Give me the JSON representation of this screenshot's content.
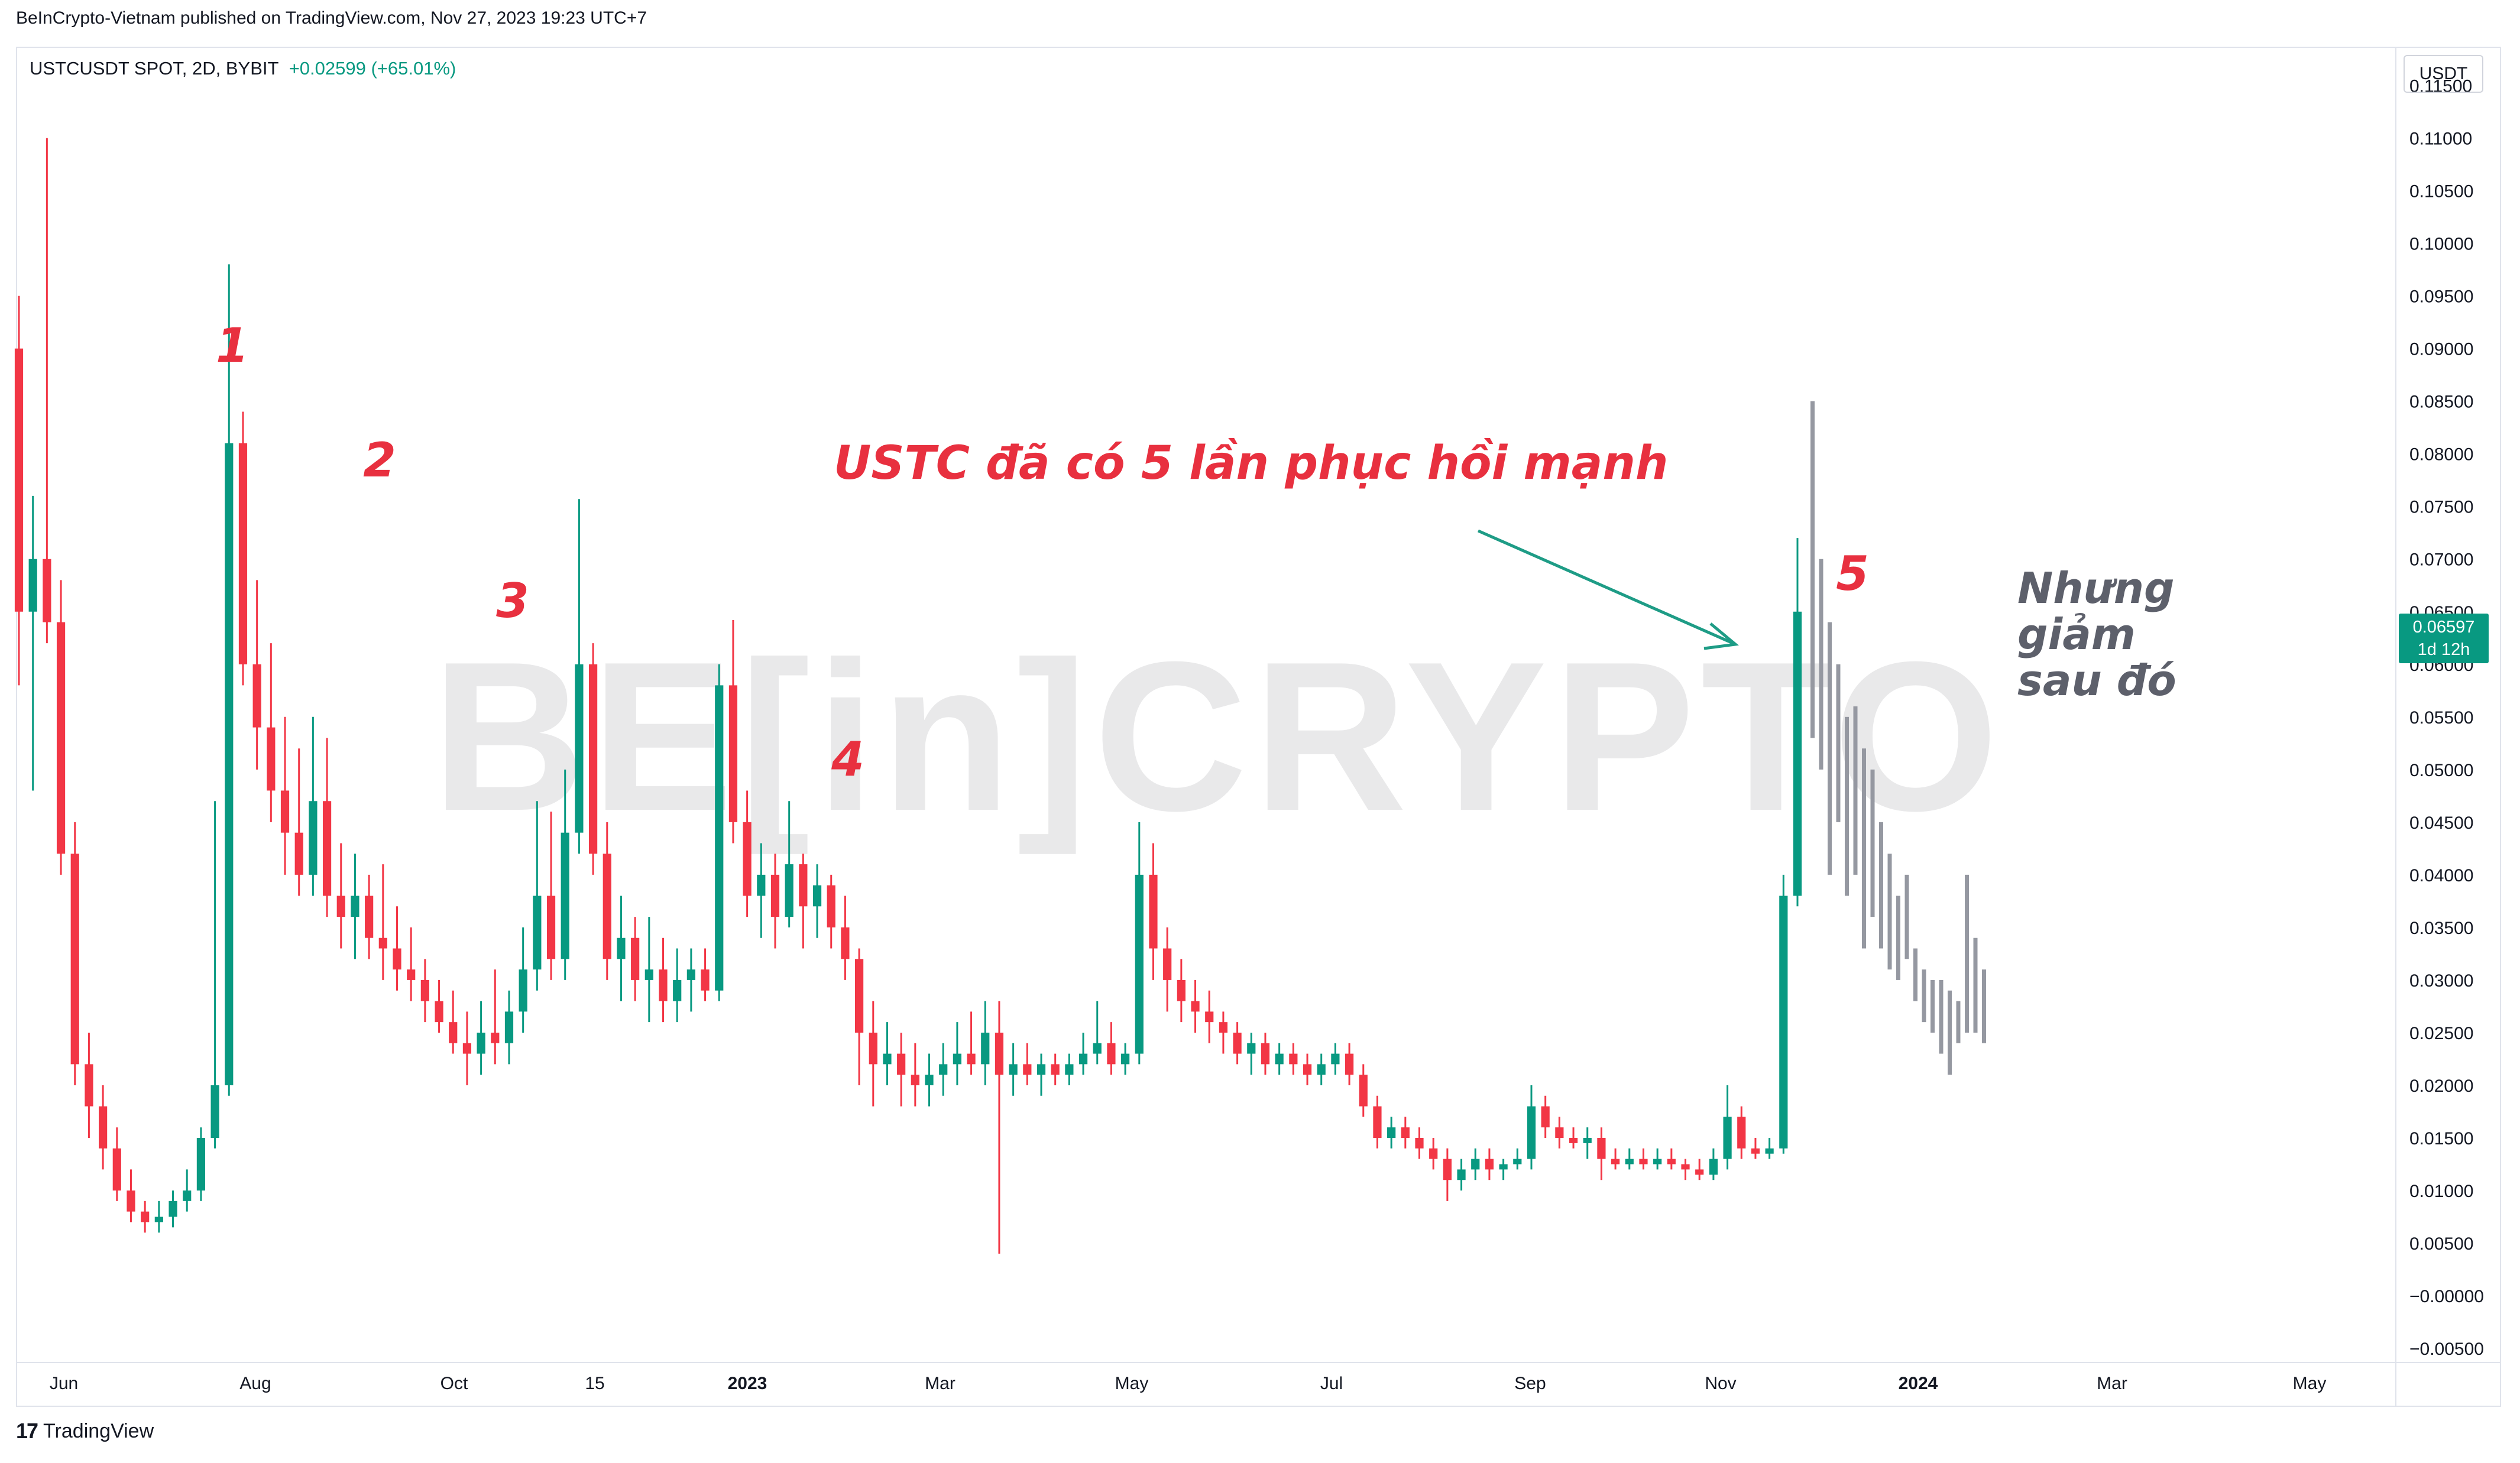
{
  "header": {
    "published": "BeInCrypto-Vietnam published on TradingView.com, Nov 27, 2023 19:23 UTC+7",
    "symbol": "USTCUSDT SPOT, 2D, BYBIT",
    "change": "+0.02599 (+65.01%)",
    "unit": "USDT"
  },
  "price_badge": {
    "price": "0.06597",
    "countdown": "1d 12h"
  },
  "footer": {
    "brand": "TradingView"
  },
  "watermark": "BE[in]CRYPTO",
  "colors": {
    "up": "#089981",
    "down": "#f23645",
    "projection": "#9598a1",
    "annotation": "#e8303f",
    "arrow": "#1e9c86"
  },
  "chart_data": {
    "type": "candlestick",
    "ylim": [
      -0.0055,
      0.1175
    ],
    "y_ticks": [
      "0.11500",
      "0.11000",
      "0.10500",
      "0.10000",
      "0.09500",
      "0.09000",
      "0.08500",
      "0.08000",
      "0.07500",
      "0.07000",
      "0.06500",
      "0.06000",
      "0.05500",
      "0.05000",
      "0.04500",
      "0.04000",
      "0.03500",
      "0.03000",
      "0.02500",
      "0.02000",
      "0.01500",
      "0.01000",
      "0.00500",
      "−0.00000",
      "−0.00500"
    ],
    "x_ticks": [
      "Jun",
      "Aug",
      "Oct",
      "15",
      "2023",
      "Mar",
      "May",
      "Jul",
      "Sep",
      "Nov",
      "2024",
      "Mar",
      "May"
    ],
    "annotations": {
      "wave_labels": [
        "1",
        "2",
        "3",
        "4",
        "5"
      ],
      "main_text": "USTC đã có 5 lần phục hồi mạnh",
      "side_text": [
        "Nhưng",
        "giảm",
        "sau đó"
      ]
    },
    "key_points": [
      {
        "label": "1",
        "high": 0.098
      },
      {
        "label": "2",
        "high": 0.0757
      },
      {
        "label": "3",
        "high": 0.0642
      },
      {
        "label": "4",
        "high": 0.0452
      },
      {
        "label": "5",
        "high": 0.085
      }
    ],
    "candles": [
      [
        0.09,
        0.095,
        0.058,
        0.065
      ],
      [
        0.065,
        0.076,
        0.048,
        0.07
      ],
      [
        0.07,
        0.11,
        0.062,
        0.064
      ],
      [
        0.064,
        0.068,
        0.04,
        0.042
      ],
      [
        0.042,
        0.045,
        0.02,
        0.022
      ],
      [
        0.022,
        0.025,
        0.015,
        0.018
      ],
      [
        0.018,
        0.02,
        0.012,
        0.014
      ],
      [
        0.014,
        0.016,
        0.009,
        0.01
      ],
      [
        0.01,
        0.012,
        0.007,
        0.008
      ],
      [
        0.008,
        0.009,
        0.006,
        0.007
      ],
      [
        0.007,
        0.009,
        0.006,
        0.0075
      ],
      [
        0.0075,
        0.01,
        0.0065,
        0.009
      ],
      [
        0.009,
        0.012,
        0.008,
        0.01
      ],
      [
        0.01,
        0.016,
        0.009,
        0.015
      ],
      [
        0.015,
        0.047,
        0.014,
        0.02
      ],
      [
        0.02,
        0.098,
        0.019,
        0.081
      ],
      [
        0.081,
        0.084,
        0.058,
        0.06
      ],
      [
        0.06,
        0.068,
        0.05,
        0.054
      ],
      [
        0.054,
        0.062,
        0.045,
        0.048
      ],
      [
        0.048,
        0.055,
        0.04,
        0.044
      ],
      [
        0.044,
        0.052,
        0.038,
        0.04
      ],
      [
        0.04,
        0.055,
        0.038,
        0.047
      ],
      [
        0.047,
        0.053,
        0.036,
        0.038
      ],
      [
        0.038,
        0.043,
        0.033,
        0.036
      ],
      [
        0.036,
        0.042,
        0.032,
        0.038
      ],
      [
        0.038,
        0.04,
        0.032,
        0.034
      ],
      [
        0.034,
        0.041,
        0.03,
        0.033
      ],
      [
        0.033,
        0.037,
        0.029,
        0.031
      ],
      [
        0.031,
        0.035,
        0.028,
        0.03
      ],
      [
        0.03,
        0.032,
        0.026,
        0.028
      ],
      [
        0.028,
        0.03,
        0.025,
        0.026
      ],
      [
        0.026,
        0.029,
        0.023,
        0.024
      ],
      [
        0.024,
        0.027,
        0.02,
        0.023
      ],
      [
        0.023,
        0.028,
        0.021,
        0.025
      ],
      [
        0.025,
        0.031,
        0.022,
        0.024
      ],
      [
        0.024,
        0.029,
        0.022,
        0.027
      ],
      [
        0.027,
        0.035,
        0.025,
        0.031
      ],
      [
        0.031,
        0.047,
        0.029,
        0.038
      ],
      [
        0.038,
        0.046,
        0.03,
        0.032
      ],
      [
        0.032,
        0.05,
        0.03,
        0.044
      ],
      [
        0.044,
        0.0757,
        0.042,
        0.06
      ],
      [
        0.06,
        0.062,
        0.04,
        0.042
      ],
      [
        0.042,
        0.045,
        0.03,
        0.032
      ],
      [
        0.032,
        0.038,
        0.028,
        0.034
      ],
      [
        0.034,
        0.036,
        0.028,
        0.03
      ],
      [
        0.03,
        0.036,
        0.026,
        0.031
      ],
      [
        0.031,
        0.034,
        0.026,
        0.028
      ],
      [
        0.028,
        0.033,
        0.026,
        0.03
      ],
      [
        0.03,
        0.033,
        0.027,
        0.031
      ],
      [
        0.031,
        0.033,
        0.028,
        0.029
      ],
      [
        0.029,
        0.06,
        0.028,
        0.058
      ],
      [
        0.058,
        0.0642,
        0.043,
        0.045
      ],
      [
        0.045,
        0.048,
        0.036,
        0.038
      ],
      [
        0.038,
        0.043,
        0.034,
        0.04
      ],
      [
        0.04,
        0.042,
        0.033,
        0.036
      ],
      [
        0.036,
        0.047,
        0.035,
        0.041
      ],
      [
        0.041,
        0.042,
        0.033,
        0.037
      ],
      [
        0.037,
        0.041,
        0.034,
        0.039
      ],
      [
        0.039,
        0.04,
        0.033,
        0.035
      ],
      [
        0.035,
        0.038,
        0.03,
        0.032
      ],
      [
        0.032,
        0.033,
        0.02,
        0.025
      ],
      [
        0.025,
        0.028,
        0.018,
        0.022
      ],
      [
        0.022,
        0.026,
        0.02,
        0.023
      ],
      [
        0.023,
        0.025,
        0.018,
        0.021
      ],
      [
        0.021,
        0.024,
        0.018,
        0.02
      ],
      [
        0.02,
        0.023,
        0.018,
        0.021
      ],
      [
        0.021,
        0.024,
        0.019,
        0.022
      ],
      [
        0.022,
        0.026,
        0.02,
        0.023
      ],
      [
        0.023,
        0.027,
        0.021,
        0.022
      ],
      [
        0.022,
        0.028,
        0.02,
        0.025
      ],
      [
        0.025,
        0.028,
        0.004,
        0.021
      ],
      [
        0.021,
        0.024,
        0.019,
        0.022
      ],
      [
        0.022,
        0.024,
        0.02,
        0.021
      ],
      [
        0.021,
        0.023,
        0.019,
        0.022
      ],
      [
        0.022,
        0.023,
        0.02,
        0.021
      ],
      [
        0.021,
        0.023,
        0.02,
        0.022
      ],
      [
        0.022,
        0.025,
        0.021,
        0.023
      ],
      [
        0.023,
        0.028,
        0.022,
        0.024
      ],
      [
        0.024,
        0.026,
        0.021,
        0.022
      ],
      [
        0.022,
        0.024,
        0.021,
        0.023
      ],
      [
        0.023,
        0.045,
        0.022,
        0.04
      ],
      [
        0.04,
        0.043,
        0.03,
        0.033
      ],
      [
        0.033,
        0.035,
        0.027,
        0.03
      ],
      [
        0.03,
        0.032,
        0.026,
        0.028
      ],
      [
        0.028,
        0.03,
        0.025,
        0.027
      ],
      [
        0.027,
        0.029,
        0.024,
        0.026
      ],
      [
        0.026,
        0.027,
        0.023,
        0.025
      ],
      [
        0.025,
        0.026,
        0.022,
        0.023
      ],
      [
        0.023,
        0.025,
        0.021,
        0.024
      ],
      [
        0.024,
        0.025,
        0.021,
        0.022
      ],
      [
        0.022,
        0.024,
        0.021,
        0.023
      ],
      [
        0.023,
        0.024,
        0.021,
        0.022
      ],
      [
        0.022,
        0.023,
        0.02,
        0.021
      ],
      [
        0.021,
        0.023,
        0.02,
        0.022
      ],
      [
        0.022,
        0.024,
        0.021,
        0.023
      ],
      [
        0.023,
        0.024,
        0.02,
        0.021
      ],
      [
        0.021,
        0.022,
        0.017,
        0.018
      ],
      [
        0.018,
        0.019,
        0.014,
        0.015
      ],
      [
        0.015,
        0.017,
        0.014,
        0.016
      ],
      [
        0.016,
        0.017,
        0.014,
        0.015
      ],
      [
        0.015,
        0.016,
        0.013,
        0.014
      ],
      [
        0.014,
        0.015,
        0.012,
        0.013
      ],
      [
        0.013,
        0.014,
        0.009,
        0.011
      ],
      [
        0.011,
        0.013,
        0.01,
        0.012
      ],
      [
        0.012,
        0.014,
        0.011,
        0.013
      ],
      [
        0.013,
        0.014,
        0.011,
        0.012
      ],
      [
        0.012,
        0.013,
        0.011,
        0.0125
      ],
      [
        0.0125,
        0.014,
        0.012,
        0.013
      ],
      [
        0.013,
        0.02,
        0.012,
        0.018
      ],
      [
        0.018,
        0.019,
        0.015,
        0.016
      ],
      [
        0.016,
        0.017,
        0.014,
        0.015
      ],
      [
        0.015,
        0.016,
        0.014,
        0.0145
      ],
      [
        0.0145,
        0.016,
        0.013,
        0.015
      ],
      [
        0.015,
        0.016,
        0.011,
        0.013
      ],
      [
        0.013,
        0.014,
        0.012,
        0.0125
      ],
      [
        0.0125,
        0.014,
        0.012,
        0.013
      ],
      [
        0.013,
        0.014,
        0.012,
        0.0125
      ],
      [
        0.0125,
        0.014,
        0.012,
        0.013
      ],
      [
        0.013,
        0.014,
        0.012,
        0.0125
      ],
      [
        0.0125,
        0.013,
        0.011,
        0.012
      ],
      [
        0.012,
        0.013,
        0.011,
        0.0115
      ],
      [
        0.0115,
        0.014,
        0.011,
        0.013
      ],
      [
        0.013,
        0.02,
        0.012,
        0.017
      ],
      [
        0.017,
        0.018,
        0.013,
        0.014
      ],
      [
        0.014,
        0.015,
        0.013,
        0.0135
      ],
      [
        0.0135,
        0.015,
        0.013,
        0.014
      ],
      [
        0.014,
        0.04,
        0.0135,
        0.038
      ],
      [
        0.038,
        0.072,
        0.037,
        0.065
      ]
    ],
    "projection": [
      [
        0.085,
        0.053
      ],
      [
        0.07,
        0.05
      ],
      [
        0.064,
        0.04
      ],
      [
        0.06,
        0.045
      ],
      [
        0.055,
        0.038
      ],
      [
        0.056,
        0.04
      ],
      [
        0.052,
        0.033
      ],
      [
        0.05,
        0.036
      ],
      [
        0.045,
        0.033
      ],
      [
        0.042,
        0.031
      ],
      [
        0.038,
        0.03
      ],
      [
        0.04,
        0.032
      ],
      [
        0.033,
        0.028
      ],
      [
        0.031,
        0.026
      ],
      [
        0.03,
        0.025
      ],
      [
        0.03,
        0.023
      ],
      [
        0.029,
        0.021
      ],
      [
        0.028,
        0.024
      ],
      [
        0.04,
        0.025
      ],
      [
        0.034,
        0.025
      ],
      [
        0.031,
        0.024
      ]
    ]
  }
}
